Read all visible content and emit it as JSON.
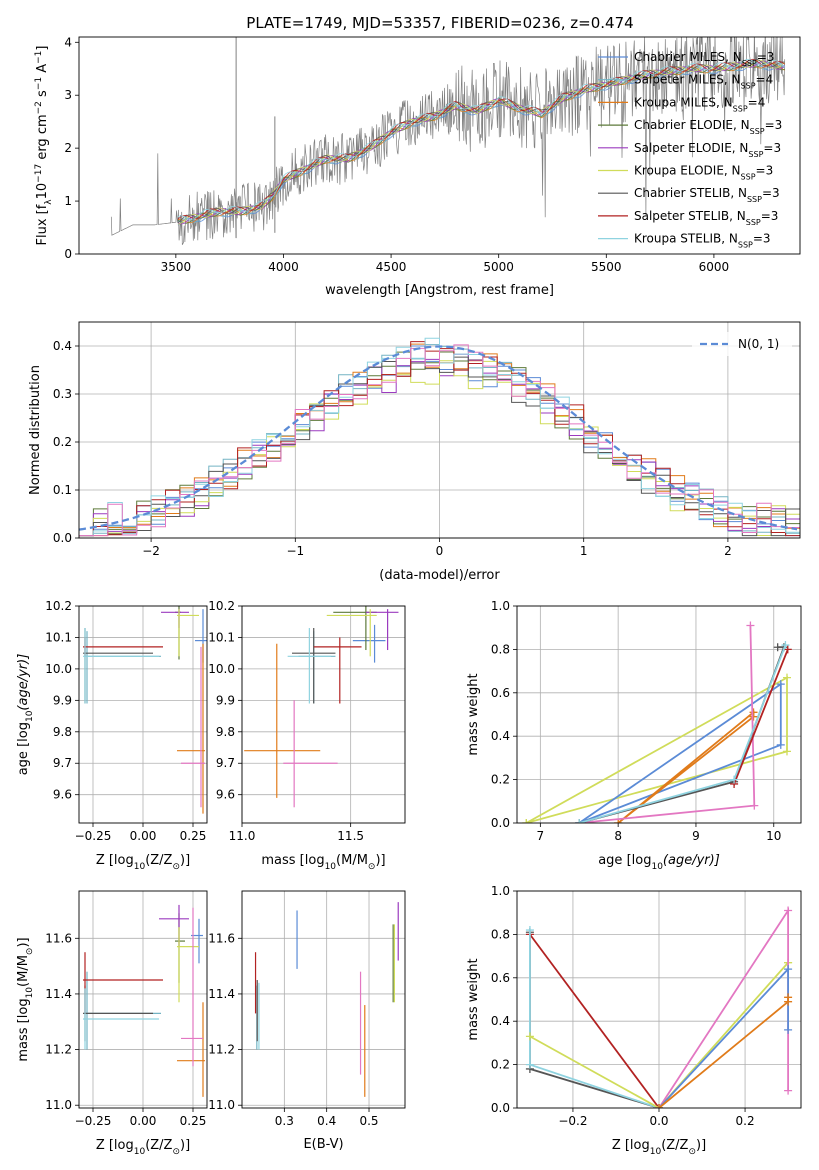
{
  "title": "PLATE=1749, MJD=53357, FIBERID=0236, z=0.474",
  "colors": {
    "Chabrier MILES": "#5b8bd6",
    "Salpeter MILES": "#73b4c4",
    "Kroupa MILES": "#e07b1a",
    "Chabrier ELODIE": "#5d7a3a",
    "Salpeter ELODIE": "#9b3bbf",
    "Kroupa ELODIE": "#d0dc5a",
    "Chabrier STELIB": "#555555",
    "Salpeter STELIB": "#b22222",
    "Kroupa STELIB": "#8fd3e0",
    "pink": "#e377c2",
    "data": "#808080"
  },
  "legend_main": [
    {
      "name": "Chabrier MILES",
      "base": "Chabrier MILES, N",
      "n": "3"
    },
    {
      "name": "Salpeter MILES",
      "base": "Salpeter MILES, N",
      "n": "4"
    },
    {
      "name": "Kroupa MILES",
      "base": "Kroupa MILES, N",
      "n": "4"
    },
    {
      "name": "Chabrier ELODIE",
      "base": "Chabrier ELODIE, N",
      "n": "3"
    },
    {
      "name": "Salpeter ELODIE",
      "base": "Salpeter ELODIE, N",
      "n": "3"
    },
    {
      "name": "Kroupa ELODIE",
      "base": "Kroupa ELODIE, N",
      "n": "3"
    },
    {
      "name": "Chabrier STELIB",
      "base": "Chabrier STELIB, N",
      "n": "3"
    },
    {
      "name": "Salpeter STELIB",
      "base": "Salpeter STELIB, N",
      "n": "3"
    },
    {
      "name": "Kroupa STELIB",
      "base": "Kroupa STELIB, N",
      "n": "3"
    }
  ],
  "legend_sub": "SSP",
  "legend_hist": "N(0, 1)",
  "chart_data": [
    {
      "id": "spectrum",
      "type": "line",
      "xlabel": "wavelength [Angstrom, rest frame]",
      "ylabel": "Flux [f_λ 10^-17 erg cm^-2 s^-1 A^-1]",
      "xlim": [
        3050,
        6400
      ],
      "ylim": [
        0,
        4.1
      ],
      "xticks": [
        3500,
        4000,
        4500,
        5000,
        5500,
        6000
      ],
      "yticks": [
        0,
        1,
        2,
        3,
        4
      ],
      "model_continuum": [
        [
          3200,
          0.35
        ],
        [
          3300,
          0.55
        ],
        [
          3400,
          0.55
        ],
        [
          3500,
          0.6
        ],
        [
          3600,
          0.7
        ],
        [
          3700,
          0.8
        ],
        [
          3800,
          0.8
        ],
        [
          3900,
          0.9
        ],
        [
          3950,
          1.1
        ],
        [
          4000,
          1.4
        ],
        [
          4100,
          1.6
        ],
        [
          4200,
          1.8
        ],
        [
          4300,
          1.8
        ],
        [
          4400,
          2.0
        ],
        [
          4500,
          2.3
        ],
        [
          4600,
          2.5
        ],
        [
          4700,
          2.6
        ],
        [
          4800,
          2.8
        ],
        [
          4900,
          2.7
        ],
        [
          5000,
          2.9
        ],
        [
          5100,
          2.75
        ],
        [
          5200,
          2.65
        ],
        [
          5300,
          2.95
        ],
        [
          5400,
          3.1
        ],
        [
          5500,
          3.2
        ],
        [
          5600,
          3.3
        ],
        [
          5700,
          3.4
        ],
        [
          5800,
          3.45
        ],
        [
          5900,
          3.5
        ],
        [
          6000,
          3.5
        ],
        [
          6100,
          3.55
        ],
        [
          6200,
          3.6
        ],
        [
          6300,
          3.55
        ]
      ]
    },
    {
      "id": "residuals",
      "type": "histogram",
      "xlabel": "(data-model)/error",
      "ylabel": "Normed distribution",
      "xlim": [
        -2.5,
        2.5
      ],
      "ylim": [
        0,
        0.45
      ],
      "xticks": [
        -2,
        -1,
        0,
        1,
        2
      ],
      "yticks": [
        0.0,
        0.1,
        0.2,
        0.3,
        0.4
      ],
      "reference": "N(0,1)"
    },
    {
      "id": "age-vs-Z",
      "type": "scatter",
      "xlabel": "Z [log10(Z/Z⊙)]",
      "ylabel": "age [log10(age/yr)]",
      "xlim": [
        -0.32,
        0.32
      ],
      "ylim": [
        9.51,
        10.2
      ],
      "xticks": [
        -0.25,
        0.0,
        0.25
      ],
      "yticks": [
        9.6,
        9.7,
        9.8,
        9.9,
        10.0,
        10.1,
        10.2
      ],
      "points": [
        {
          "c": "Chabrier MILES",
          "x": 0.3,
          "y": 10.09,
          "ex": [
            0.04,
            0.02
          ],
          "ey": [
            0.07,
            0.1
          ]
        },
        {
          "c": "Salpeter MILES",
          "x": -0.28,
          "y": 10.04,
          "ex": [
            0.01,
            0.37
          ],
          "ey": [
            0.15,
            0.08
          ]
        },
        {
          "c": "Kroupa MILES",
          "x": 0.3,
          "y": 9.74,
          "ex": [
            0.13,
            0.01
          ],
          "ey": [
            0.2,
            0.34
          ]
        },
        {
          "c": "Chabrier ELODIE",
          "x": 0.18,
          "y": 10.18,
          "ex": [
            0.02,
            0.01
          ],
          "ey": [
            0.15,
            0.02
          ]
        },
        {
          "c": "Salpeter ELODIE",
          "x": 0.18,
          "y": 10.18,
          "ex": [
            0.09,
            0.05
          ],
          "ey": [
            0.05,
            0.01
          ]
        },
        {
          "c": "Kroupa ELODIE",
          "x": 0.18,
          "y": 10.17,
          "ex": [
            0.01,
            0.1
          ],
          "ey": [
            0.13,
            0.02
          ]
        },
        {
          "c": "Chabrier STELIB",
          "x": -0.29,
          "y": 10.05,
          "ex": [
            0.01,
            0.34
          ],
          "ey": [
            0.16,
            0.08
          ]
        },
        {
          "c": "Salpeter STELIB",
          "x": -0.29,
          "y": 10.07,
          "ex": [
            0.01,
            0.39
          ],
          "ey": [
            0.03,
            0.03
          ]
        },
        {
          "c": "Kroupa STELIB",
          "x": -0.29,
          "y": 10.04,
          "ex": [
            0.01,
            0.37
          ],
          "ey": [
            0.15,
            0.09
          ]
        },
        {
          "c": "pink",
          "x": 0.29,
          "y": 9.7,
          "ex": [
            0.1,
            0.02
          ],
          "ey": [
            0.14,
            0.37
          ]
        }
      ]
    },
    {
      "id": "age-vs-mass",
      "type": "scatter",
      "xlabel": "mass [log10(M/M⊙)]",
      "xlim": [
        11.0,
        11.75
      ],
      "ylim": [
        9.51,
        10.2
      ],
      "xticks": [
        11.0,
        11.5
      ],
      "yticks": [
        9.6,
        9.7,
        9.8,
        9.9,
        10.0,
        10.1,
        10.2
      ],
      "points": [
        {
          "c": "Chabrier MILES",
          "x": 11.61,
          "y": 10.09,
          "ex": [
            0.1,
            0.05
          ],
          "ey": [
            0.07,
            0.05
          ]
        },
        {
          "c": "Salpeter MILES",
          "x": 11.33,
          "y": 10.04,
          "ex": [
            0.07,
            0.1
          ],
          "ey": [
            0.15,
            0.08
          ]
        },
        {
          "c": "Kroupa MILES",
          "x": 11.16,
          "y": 9.74,
          "ex": [
            0.15,
            0.2
          ],
          "ey": [
            0.15,
            0.34
          ]
        },
        {
          "c": "Chabrier ELODIE",
          "x": 11.57,
          "y": 10.18,
          "ex": [
            0.15,
            0.05
          ],
          "ey": [
            0.12,
            0.02
          ]
        },
        {
          "c": "Salpeter ELODIE",
          "x": 11.67,
          "y": 10.18,
          "ex": [
            0.1,
            0.05
          ],
          "ey": [
            0.12,
            0.01
          ]
        },
        {
          "c": "Kroupa ELODIE",
          "x": 11.59,
          "y": 10.17,
          "ex": [
            0.2,
            0.03
          ],
          "ey": [
            0.13,
            0.02
          ]
        },
        {
          "c": "Chabrier STELIB",
          "x": 11.33,
          "y": 10.05,
          "ex": [
            0.1,
            0.1
          ],
          "ey": [
            0.16,
            0.08
          ]
        },
        {
          "c": "Salpeter STELIB",
          "x": 11.45,
          "y": 10.07,
          "ex": [
            0.12,
            0.1
          ],
          "ey": [
            0.18,
            0.03
          ]
        },
        {
          "c": "Kroupa STELIB",
          "x": 11.31,
          "y": 10.04,
          "ex": [
            0.1,
            0.1
          ],
          "ey": [
            0.15,
            0.09
          ]
        },
        {
          "c": "pink",
          "x": 11.24,
          "y": 9.7,
          "ex": [
            0.05,
            0.2
          ],
          "ey": [
            0.14,
            0.2
          ]
        }
      ]
    },
    {
      "id": "weight-vs-age",
      "type": "line",
      "xlabel": "age [log10(age/yr)]",
      "ylabel": "mass weight",
      "xlim": [
        6.7,
        10.35
      ],
      "ylim": [
        0,
        1.0
      ],
      "xticks": [
        7,
        8,
        9,
        10
      ],
      "yticks": [
        0.0,
        0.2,
        0.4,
        0.6,
        0.8,
        1.0
      ],
      "series": [
        {
          "c": "Kroupa ELODIE",
          "points": [
            [
              6.82,
              0.0
            ],
            [
              10.17,
              0.67
            ],
            [
              10.17,
              0.33
            ],
            [
              6.82,
              0.0
            ]
          ]
        },
        {
          "c": "Chabrier MILES",
          "points": [
            [
              7.5,
              0.0
            ],
            [
              10.09,
              0.64
            ],
            [
              10.09,
              0.36
            ],
            [
              7.5,
              0.0
            ]
          ]
        },
        {
          "c": "Kroupa MILES",
          "points": [
            [
              8.0,
              0.0
            ],
            [
              9.74,
              0.49
            ],
            [
              9.74,
              0.51
            ],
            [
              8.0,
              0.0
            ]
          ]
        },
        {
          "c": "pink",
          "points": [
            [
              9.7,
              0.91
            ],
            [
              9.75,
              0.08
            ],
            [
              7.5,
              0.0
            ]
          ]
        },
        {
          "c": "Chabrier STELIB",
          "points": [
            [
              7.5,
              0.0
            ],
            [
              9.49,
              0.19
            ],
            [
              10.13,
              0.81
            ],
            [
              10.05,
              0.81
            ]
          ]
        },
        {
          "c": "Salpeter STELIB",
          "points": [
            [
              9.49,
              0.18
            ],
            [
              10.18,
              0.8
            ]
          ]
        },
        {
          "c": "Kroupa STELIB",
          "points": [
            [
              7.5,
              0.0
            ],
            [
              9.49,
              0.2
            ],
            [
              10.15,
              0.82
            ]
          ]
        }
      ]
    },
    {
      "id": "mass-vs-Z",
      "type": "scatter",
      "xlabel": "Z [log10(Z/Z⊙)]",
      "ylabel": "mass [log10(M/M⊙)]",
      "xlim": [
        -0.32,
        0.32
      ],
      "ylim": [
        10.99,
        11.77
      ],
      "xticks": [
        -0.25,
        0.0,
        0.25
      ],
      "yticks": [
        11.0,
        11.2,
        11.4,
        11.6
      ],
      "points": [
        {
          "c": "Chabrier MILES",
          "x": 0.28,
          "y": 11.61,
          "ex": [
            0.04,
            0.02
          ],
          "ey": [
            0.1,
            0.06
          ]
        },
        {
          "c": "Salpeter MILES",
          "x": -0.28,
          "y": 11.33,
          "ex": [
            0.01,
            0.37
          ],
          "ey": [
            0.13,
            0.15
          ]
        },
        {
          "c": "Kroupa MILES",
          "x": 0.3,
          "y": 11.16,
          "ex": [
            0.13,
            0.01
          ],
          "ey": [
            0.13,
            0.21
          ]
        },
        {
          "c": "Chabrier ELODIE",
          "x": 0.18,
          "y": 11.59,
          "ex": [
            0.02,
            0.03
          ],
          "ey": [
            0.15,
            0.1
          ]
        },
        {
          "c": "Salpeter ELODIE",
          "x": 0.18,
          "y": 11.67,
          "ex": [
            0.1,
            0.05
          ],
          "ey": [
            0.1,
            0.05
          ]
        },
        {
          "c": "Kroupa ELODIE",
          "x": 0.18,
          "y": 11.57,
          "ex": [
            0.01,
            0.1
          ],
          "ey": [
            0.2,
            0.07
          ]
        },
        {
          "c": "Chabrier STELIB",
          "x": -0.29,
          "y": 11.33,
          "ex": [
            0.01,
            0.34
          ],
          "ey": [
            0.1,
            0.1
          ]
        },
        {
          "c": "Salpeter STELIB",
          "x": -0.29,
          "y": 11.45,
          "ex": [
            0.01,
            0.39
          ],
          "ey": [
            0.12,
            0.1
          ]
        },
        {
          "c": "Kroupa STELIB",
          "x": -0.29,
          "y": 11.31,
          "ex": [
            0.01,
            0.37
          ],
          "ey": [
            0.11,
            0.11
          ]
        },
        {
          "c": "pink",
          "x": 0.25,
          "y": 11.24,
          "ex": [
            0.06,
            0.05
          ],
          "ey": [
            0.1,
            0.47
          ]
        }
      ]
    },
    {
      "id": "mass-vs-EBV",
      "type": "scatter",
      "xlabel": "E(B-V)",
      "xlim": [
        0.2,
        0.585
      ],
      "ylim": [
        10.99,
        11.77
      ],
      "xticks": [
        0.3,
        0.4,
        0.5
      ],
      "yticks": [
        11.0,
        11.2,
        11.4,
        11.6
      ],
      "points": [
        {
          "c": "Chabrier MILES",
          "x": 0.33,
          "y": 11.61,
          "ey": [
            0.12,
            0.09
          ]
        },
        {
          "c": "Salpeter MILES",
          "x": 0.235,
          "y": 11.33,
          "ey": [
            0.13,
            0.1
          ]
        },
        {
          "c": "Kroupa MILES",
          "x": 0.49,
          "y": 11.16,
          "ey": [
            0.13,
            0.2
          ]
        },
        {
          "c": "Chabrier ELODIE",
          "x": 0.557,
          "y": 11.57,
          "ey": [
            0.2,
            0.08
          ]
        },
        {
          "c": "Salpeter ELODIE",
          "x": 0.569,
          "y": 11.67,
          "ey": [
            0.15,
            0.06
          ]
        },
        {
          "c": "Kroupa ELODIE",
          "x": 0.56,
          "y": 11.57,
          "ey": [
            0.2,
            0.08
          ]
        },
        {
          "c": "Chabrier STELIB",
          "x": 0.236,
          "y": 11.33,
          "ey": [
            0.1,
            0.12
          ]
        },
        {
          "c": "Salpeter STELIB",
          "x": 0.232,
          "y": 11.45,
          "ey": [
            0.12,
            0.1
          ]
        },
        {
          "c": "Kroupa STELIB",
          "x": 0.24,
          "y": 11.31,
          "ey": [
            0.11,
            0.13
          ]
        },
        {
          "c": "pink",
          "x": 0.48,
          "y": 11.24,
          "ey": [
            0.13,
            0.24
          ]
        }
      ]
    },
    {
      "id": "weight-vs-Z",
      "type": "line",
      "xlabel": "Z [log10(Z/Z⊙)]",
      "ylabel": "mass weight",
      "xlim": [
        -0.33,
        0.33
      ],
      "ylim": [
        0,
        1.0
      ],
      "xticks": [
        -0.2,
        0.0,
        0.2
      ],
      "yticks": [
        0.0,
        0.2,
        0.4,
        0.6,
        0.8,
        1.0
      ],
      "series": [
        {
          "c": "Chabrier STELIB",
          "points": [
            [
              -0.3,
              0.81
            ],
            [
              -0.3,
              0.18
            ],
            [
              0.0,
              0.0
            ]
          ]
        },
        {
          "c": "Salpeter STELIB",
          "points": [
            [
              -0.3,
              0.8
            ],
            [
              0.0,
              0.0
            ]
          ]
        },
        {
          "c": "Kroupa STELIB",
          "points": [
            [
              -0.3,
              0.82
            ],
            [
              -0.3,
              0.2
            ],
            [
              0.0,
              0.0
            ]
          ]
        },
        {
          "c": "Kroupa ELODIE",
          "points": [
            [
              -0.3,
              0.33
            ],
            [
              0.0,
              0.0
            ],
            [
              0.3,
              0.67
            ],
            [
              0.3,
              0.67
            ]
          ]
        },
        {
          "c": "pink",
          "points": [
            [
              0.0,
              0.0
            ],
            [
              0.3,
              0.91
            ],
            [
              0.3,
              0.08
            ]
          ]
        },
        {
          "c": "Chabrier MILES",
          "points": [
            [
              0.0,
              0.0
            ],
            [
              0.3,
              0.64
            ],
            [
              0.3,
              0.36
            ]
          ]
        },
        {
          "c": "Kroupa MILES",
          "points": [
            [
              0.0,
              0.0
            ],
            [
              0.3,
              0.49
            ],
            [
              0.3,
              0.51
            ]
          ]
        }
      ]
    }
  ]
}
